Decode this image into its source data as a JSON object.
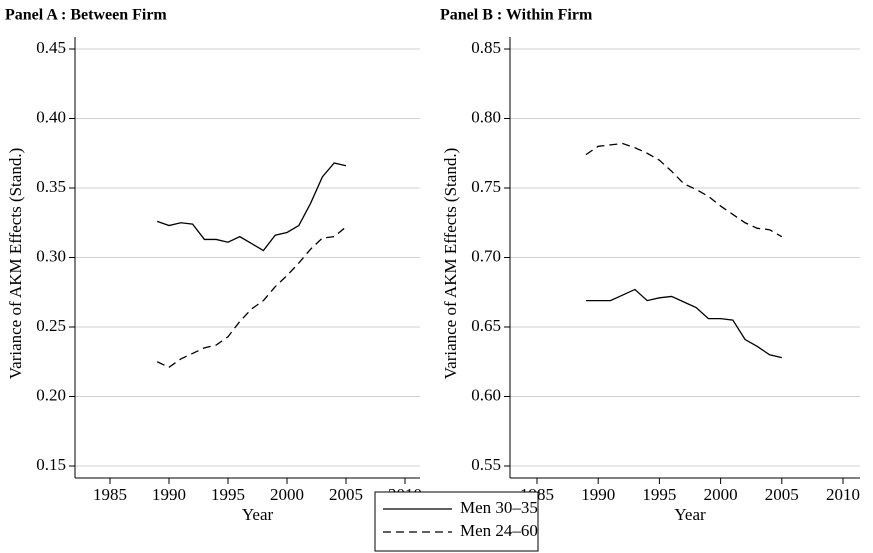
{
  "chart_data": [
    {
      "type": "line",
      "title": "Panel A : Between Firm",
      "xlabel": "Year",
      "ylabel": "Variance of AKM Effects (Stand.)",
      "x": [
        1989,
        1990,
        1991,
        1992,
        1993,
        1994,
        1995,
        1996,
        1997,
        1998,
        1999,
        2000,
        2001,
        2002,
        2003,
        2004,
        2005
      ],
      "series": [
        {
          "name": "Men 30–35",
          "color": "#000000",
          "dash": "solid",
          "values": [
            0.326,
            0.323,
            0.325,
            0.324,
            0.313,
            0.313,
            0.311,
            0.315,
            0.31,
            0.305,
            0.316,
            0.318,
            0.323,
            0.339,
            0.358,
            0.368,
            0.366
          ]
        },
        {
          "name": "Men 24–60",
          "color": "#000000",
          "dash": "dashed",
          "values": [
            0.225,
            0.221,
            0.227,
            0.231,
            0.235,
            0.237,
            0.243,
            0.254,
            0.263,
            0.269,
            0.279,
            0.287,
            0.296,
            0.306,
            0.314,
            0.315,
            0.322
          ]
        }
      ],
      "xlim": [
        1985,
        2010
      ],
      "xticks": [
        1985,
        1990,
        1995,
        2000,
        2005,
        2010
      ],
      "ylim": [
        0.15,
        0.45
      ],
      "yticks": [
        {
          "value": 0.15,
          "label": "0.15"
        },
        {
          "value": 0.2,
          "label": "0.20"
        },
        {
          "value": 0.25,
          "label": "0.25"
        },
        {
          "value": 0.3,
          "label": "0.30"
        },
        {
          "value": 0.35,
          "label": "0.35"
        },
        {
          "value": 0.4,
          "label": "0.40"
        },
        {
          "value": 0.45,
          "label": "0.45"
        }
      ],
      "grid": true
    },
    {
      "type": "line",
      "title": "Panel B : Within Firm",
      "xlabel": "Year",
      "ylabel": "Variance of AKM Effects (Stand.)",
      "x": [
        1989,
        1990,
        1991,
        1992,
        1993,
        1994,
        1995,
        1996,
        1997,
        1998,
        1999,
        2000,
        2001,
        2002,
        2003,
        2004,
        2005
      ],
      "series": [
        {
          "color": "#000000",
          "dash": "solid",
          "values": [
            0.669,
            0.669,
            0.669,
            0.673,
            0.677,
            0.669,
            0.671,
            0.672,
            0.668,
            0.664,
            0.656,
            0.656,
            0.655,
            0.641,
            0.636,
            0.63,
            0.628
          ]
        },
        {
          "color": "#000000",
          "dash": "dashed",
          "values": [
            0.774,
            0.78,
            0.781,
            0.782,
            0.779,
            0.775,
            0.77,
            0.762,
            0.753,
            0.749,
            0.744,
            0.737,
            0.731,
            0.725,
            0.721,
            0.72,
            0.715
          ]
        }
      ],
      "xlim": [
        1985,
        2010
      ],
      "xticks": [
        1985,
        1990,
        1995,
        2000,
        2005,
        2010
      ],
      "ylim": [
        0.55,
        0.85
      ],
      "yticks": [
        {
          "value": 0.55,
          "label": "0.55"
        },
        {
          "value": 0.6,
          "label": "0.60"
        },
        {
          "value": 0.65,
          "label": "0.65"
        },
        {
          "value": 0.7,
          "label": "0.70"
        },
        {
          "value": 0.75,
          "label": "0.75"
        },
        {
          "value": 0.8,
          "label": "0.80"
        },
        {
          "value": 0.85,
          "label": "0.85"
        }
      ],
      "grid": true
    }
  ]
}
